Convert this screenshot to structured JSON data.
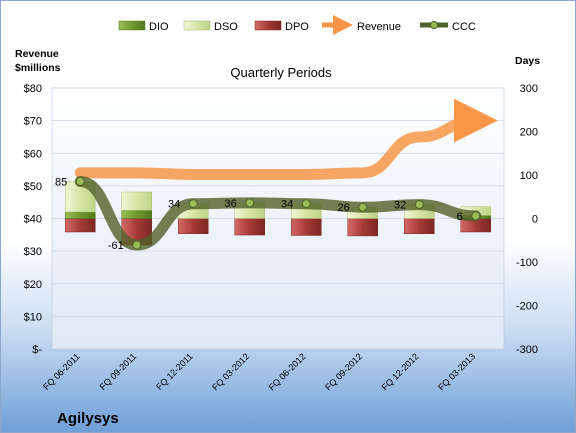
{
  "company": "Agilysys",
  "chart_data": {
    "type": "bar",
    "title": "Quarterly Periods",
    "left_axis": {
      "label_line1": "Revenue",
      "label_line2": "$millions",
      "range": [
        0,
        80
      ],
      "ticks": [
        "$-",
        "$10",
        "$20",
        "$30",
        "$40",
        "$50",
        "$60",
        "$70",
        "$80"
      ]
    },
    "right_axis": {
      "label": "Days",
      "range": [
        -300,
        300
      ],
      "ticks": [
        "-300",
        "-200",
        "-100",
        "0",
        "100",
        "200",
        "300"
      ]
    },
    "categories": [
      "FQ 06-2011",
      "FQ 09-2011",
      "FQ 12-2011",
      "FQ 03-2012",
      "FQ 06-2012",
      "FQ 09-2012",
      "FQ 12-2012",
      "FQ 03-2013"
    ],
    "legend_position": "top",
    "series": [
      {
        "name": "DIO",
        "color": "#7fa83a",
        "values": [
          15,
          19,
          0,
          0,
          0,
          0,
          0,
          7
        ]
      },
      {
        "name": "DSO",
        "color": "#dbe9b0",
        "values": [
          70,
          42,
          34,
          36,
          34,
          26,
          32,
          20
        ]
      },
      {
        "name": "DPO",
        "color": "#c0504d",
        "values": [
          -31,
          -61,
          -35,
          -38,
          -39,
          -40,
          -35,
          -31
        ]
      },
      {
        "name": "Revenue",
        "color": "#f79646",
        "values": [
          54,
          54,
          53.5,
          53.5,
          53.5,
          54,
          65,
          70
        ]
      },
      {
        "name": "CCC",
        "color": "#4f6228",
        "values": [
          85,
          -61,
          34,
          36,
          34,
          26,
          32,
          6
        ]
      }
    ],
    "ccc_labels": [
      "85",
      "-61",
      "34",
      "36",
      "34",
      "26",
      "32",
      "6"
    ],
    "grid": true
  }
}
